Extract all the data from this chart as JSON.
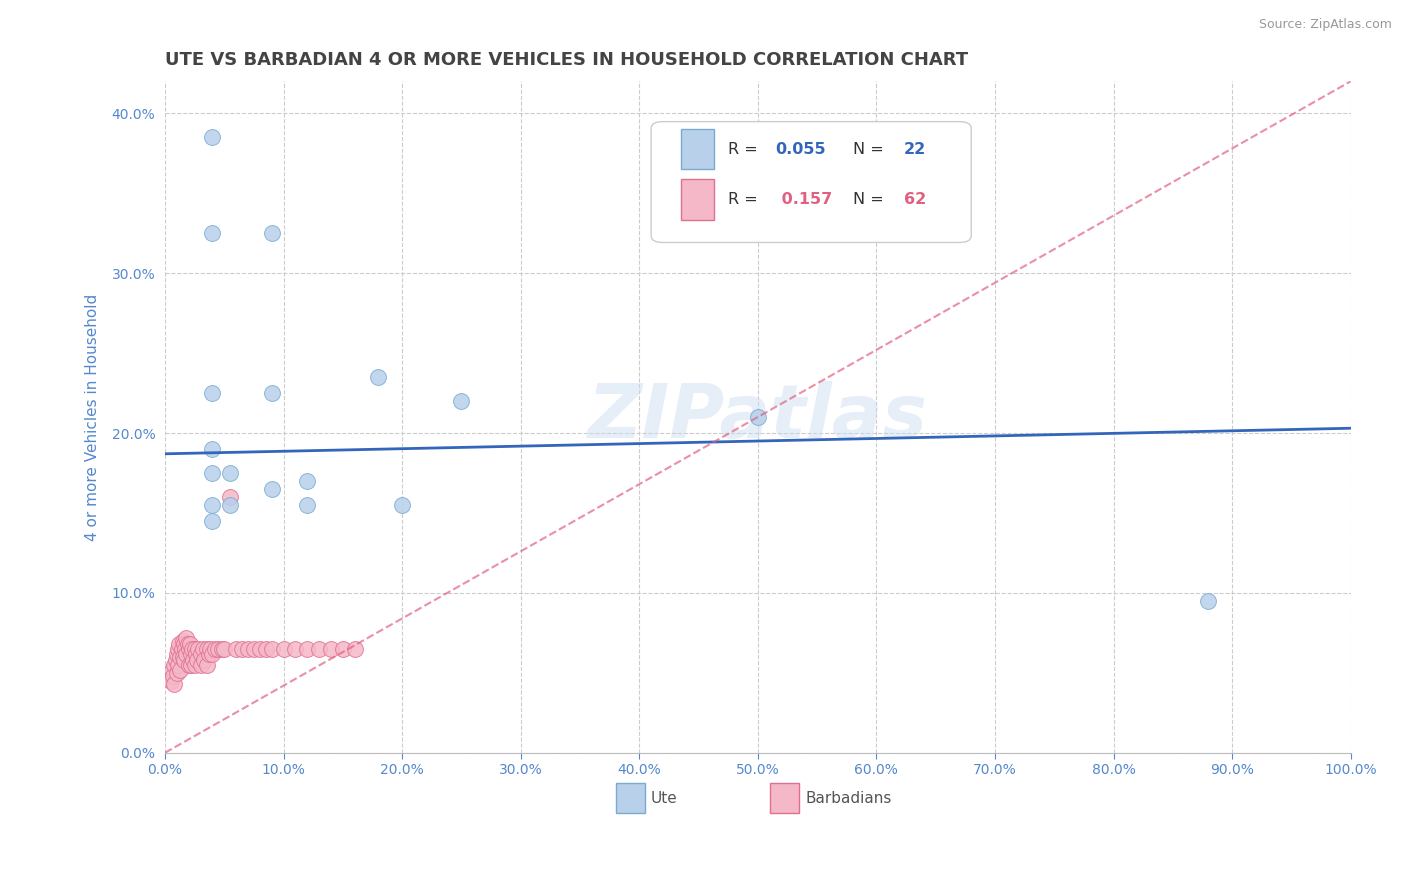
{
  "title": "UTE VS BARBADIAN 4 OR MORE VEHICLES IN HOUSEHOLD CORRELATION CHART",
  "source": "Source: ZipAtlas.com",
  "ylabel_label": "4 or more Vehicles in Household",
  "watermark": "ZIPatlas",
  "legend_ute": "Ute",
  "legend_barbadian": "Barbadians",
  "xlim": [
    0.0,
    1.0
  ],
  "ylim": [
    0.0,
    0.42
  ],
  "ytick_values": [
    0.0,
    0.1,
    0.2,
    0.3,
    0.4
  ],
  "ytick_labels": [
    "0.0%",
    "10.0%",
    "20.0%",
    "30.0%",
    "40.0%"
  ],
  "xtick_values": [
    0.0,
    0.1,
    0.2,
    0.3,
    0.4,
    0.5,
    0.6,
    0.7,
    0.8,
    0.9,
    1.0
  ],
  "xtick_labels": [
    "0.0%",
    "10.0%",
    "20.0%",
    "30.0%",
    "40.0%",
    "50.0%",
    "60.0%",
    "70.0%",
    "80.0%",
    "90.0%",
    "100.0%"
  ],
  "ute_color": "#b8d0ea",
  "ute_edge_color": "#7aaad0",
  "barbadian_color": "#f5b8c8",
  "barbadian_edge_color": "#e07090",
  "trend_ute_color": "#3366bb",
  "trend_bar_color": "#e06080",
  "grid_color": "#cccccc",
  "title_color": "#444444",
  "axis_label_color": "#5588cc",
  "tick_color": "#5588cc",
  "ute_x": [
    0.04,
    0.04,
    0.09,
    0.04,
    0.04,
    0.04,
    0.055,
    0.04,
    0.055,
    0.04,
    0.09,
    0.09,
    0.12,
    0.12,
    0.18,
    0.2,
    0.25,
    0.5,
    0.88
  ],
  "ute_y": [
    0.385,
    0.325,
    0.325,
    0.225,
    0.19,
    0.175,
    0.175,
    0.155,
    0.155,
    0.145,
    0.225,
    0.165,
    0.17,
    0.155,
    0.235,
    0.155,
    0.22,
    0.21,
    0.095
  ],
  "bar_x": [
    0.005,
    0.006,
    0.007,
    0.008,
    0.008,
    0.009,
    0.01,
    0.01,
    0.011,
    0.011,
    0.012,
    0.013,
    0.013,
    0.014,
    0.015,
    0.015,
    0.016,
    0.016,
    0.017,
    0.018,
    0.018,
    0.019,
    0.02,
    0.02,
    0.021,
    0.022,
    0.022,
    0.023,
    0.024,
    0.025,
    0.025,
    0.026,
    0.027,
    0.028,
    0.03,
    0.03,
    0.032,
    0.033,
    0.035,
    0.035,
    0.037,
    0.038,
    0.04,
    0.042,
    0.045,
    0.048,
    0.05,
    0.055,
    0.06,
    0.065,
    0.07,
    0.075,
    0.08,
    0.085,
    0.09,
    0.1,
    0.11,
    0.12,
    0.13,
    0.14,
    0.15,
    0.16
  ],
  "bar_y": [
    0.045,
    0.052,
    0.048,
    0.055,
    0.043,
    0.058,
    0.062,
    0.05,
    0.065,
    0.055,
    0.068,
    0.06,
    0.052,
    0.065,
    0.07,
    0.06,
    0.068,
    0.058,
    0.065,
    0.072,
    0.062,
    0.068,
    0.065,
    0.055,
    0.068,
    0.062,
    0.055,
    0.065,
    0.058,
    0.065,
    0.055,
    0.062,
    0.058,
    0.065,
    0.062,
    0.055,
    0.065,
    0.058,
    0.065,
    0.055,
    0.062,
    0.065,
    0.062,
    0.065,
    0.065,
    0.065,
    0.065,
    0.16,
    0.065,
    0.065,
    0.065,
    0.065,
    0.065,
    0.065,
    0.065,
    0.065,
    0.065,
    0.065,
    0.065,
    0.065,
    0.065,
    0.065
  ],
  "ute_trend_x0": 0.0,
  "ute_trend_y0": 0.187,
  "ute_trend_x1": 1.0,
  "ute_trend_y1": 0.203,
  "bar_trend_x0": 0.0,
  "bar_trend_y0": 0.0,
  "bar_trend_x1": 1.0,
  "bar_trend_y1": 0.42,
  "legend_r_ute_color": "#3366bb",
  "legend_r_bar_color": "#e06080",
  "legend_n_color": "#333333"
}
